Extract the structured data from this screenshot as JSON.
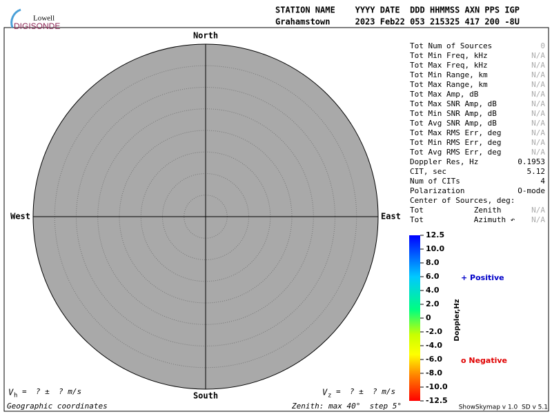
{
  "logo": {
    "top": "Lowell",
    "bottom": "DIGISONDE"
  },
  "header": {
    "line1": "STATION NAME    YYYY DATE  DDD HHMMSS AXN PPS IGP",
    "line2": "Grahamstown     2023 Feb22 053 215325 417 200 -8U"
  },
  "compass": {
    "north": "North",
    "south": "South",
    "east": "East",
    "west": "West"
  },
  "stats": [
    {
      "label": "Tot Num of Sources",
      "value": "0"
    },
    {
      "label": "Tot Min Freq, kHz",
      "value": "N/A"
    },
    {
      "label": "Tot Max Freq, kHz",
      "value": "N/A"
    },
    {
      "label": "Tot Min Range, km",
      "value": "N/A"
    },
    {
      "label": "Tot Max Range, km",
      "value": "N/A"
    },
    {
      "label": "Tot Max Amp, dB",
      "value": "N/A"
    },
    {
      "label": "Tot Max SNR Amp, dB",
      "value": "N/A"
    },
    {
      "label": "Tot Min SNR Amp, dB",
      "value": "N/A"
    },
    {
      "label": "Tot Avg SNR Amp, dB",
      "value": "N/A"
    },
    {
      "label": "Tot Max RMS Err, deg",
      "value": "N/A"
    },
    {
      "label": "Tot Min RMS Err, deg",
      "value": "N/A"
    },
    {
      "label": "Tot Avg RMS Err, deg",
      "value": "N/A"
    },
    {
      "label": "Doppler Res, Hz",
      "value": "0.1953"
    },
    {
      "label": "CIT, sec",
      "value": "5.12"
    },
    {
      "label": "Num of CITs",
      "value": "4"
    },
    {
      "label": "Polarization",
      "value": "O-mode"
    },
    {
      "label": "Center of Sources, deg:"
    },
    {
      "label": "Tot           Zenith",
      "value": "N/A"
    },
    {
      "label": "Tot           Azimuth ↶",
      "value": "N/A"
    }
  ],
  "colorbar": {
    "title": "Doppler,Hz",
    "ticks": [
      "12.5",
      "10.0",
      "8.0",
      "6.0",
      "4.0",
      "2.0",
      "0",
      "-2.0",
      "-4.0",
      "-6.0",
      "-8.0",
      "-10.0",
      "-12.5"
    ]
  },
  "legend": {
    "positive": "+ Positive",
    "negative": "o Negative"
  },
  "footer": {
    "vh_symbol": "V",
    "vh_sub": "h",
    "vh_text": "=  ? ±  ? m/s",
    "vz_symbol": "V",
    "vz_sub": "z",
    "vz_text": "=  ? ±  ? m/s",
    "coords": "Geographic coordinates",
    "zenith": "Zenith: max 40°  step 5°",
    "version": "ShowSkymap v 1.0  SD v 5.1"
  }
}
